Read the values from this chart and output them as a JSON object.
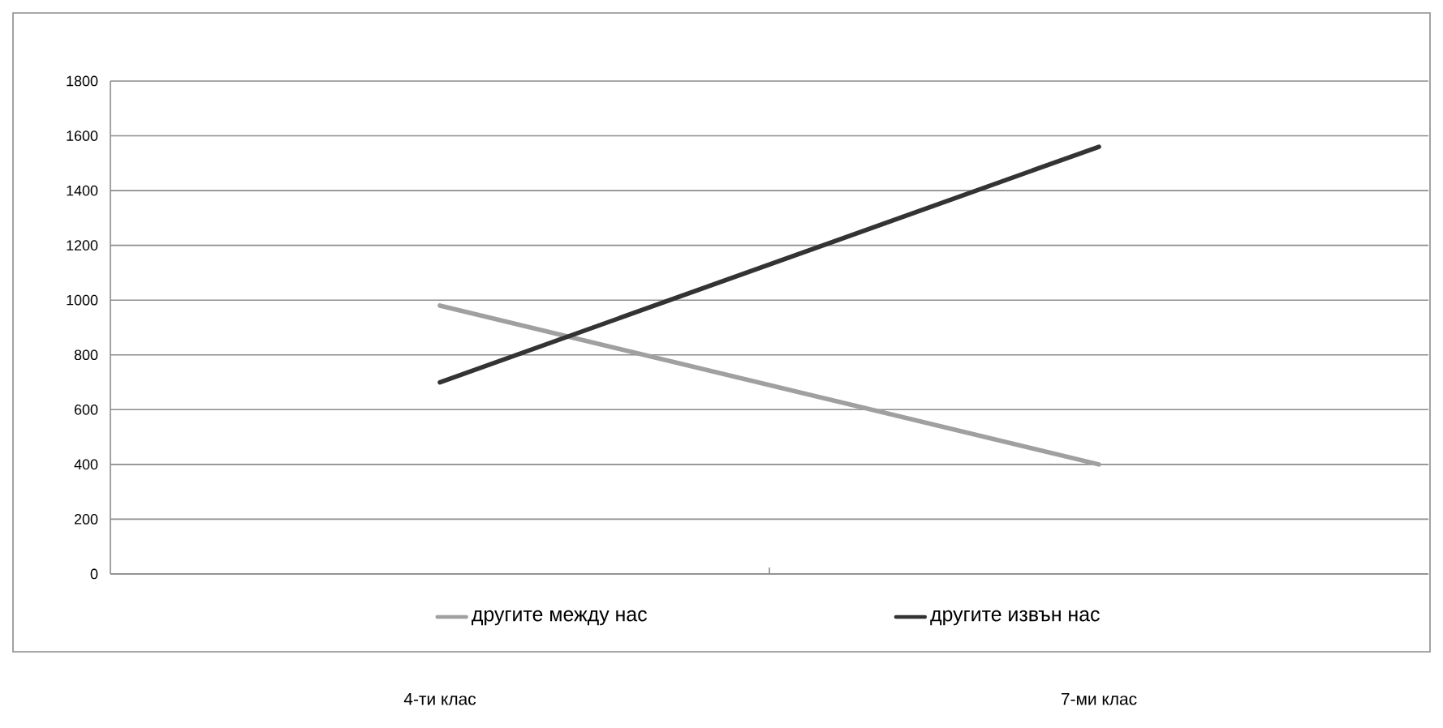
{
  "chart_data": {
    "type": "line",
    "categories": [
      "4-ти клас",
      "7-ми клас"
    ],
    "series": [
      {
        "name": "другите между нас",
        "color": "#a0a0a0",
        "values": [
          980,
          400
        ]
      },
      {
        "name": "другите извън нас",
        "color": "#333333",
        "values": [
          700,
          1560
        ]
      }
    ],
    "ylim": [
      0,
      1800
    ],
    "yticks": [
      0,
      200,
      400,
      600,
      800,
      1000,
      1200,
      1400,
      1600,
      1800
    ],
    "grid": "y",
    "legend": "bottom",
    "marker": "none",
    "line_style": "solid"
  }
}
